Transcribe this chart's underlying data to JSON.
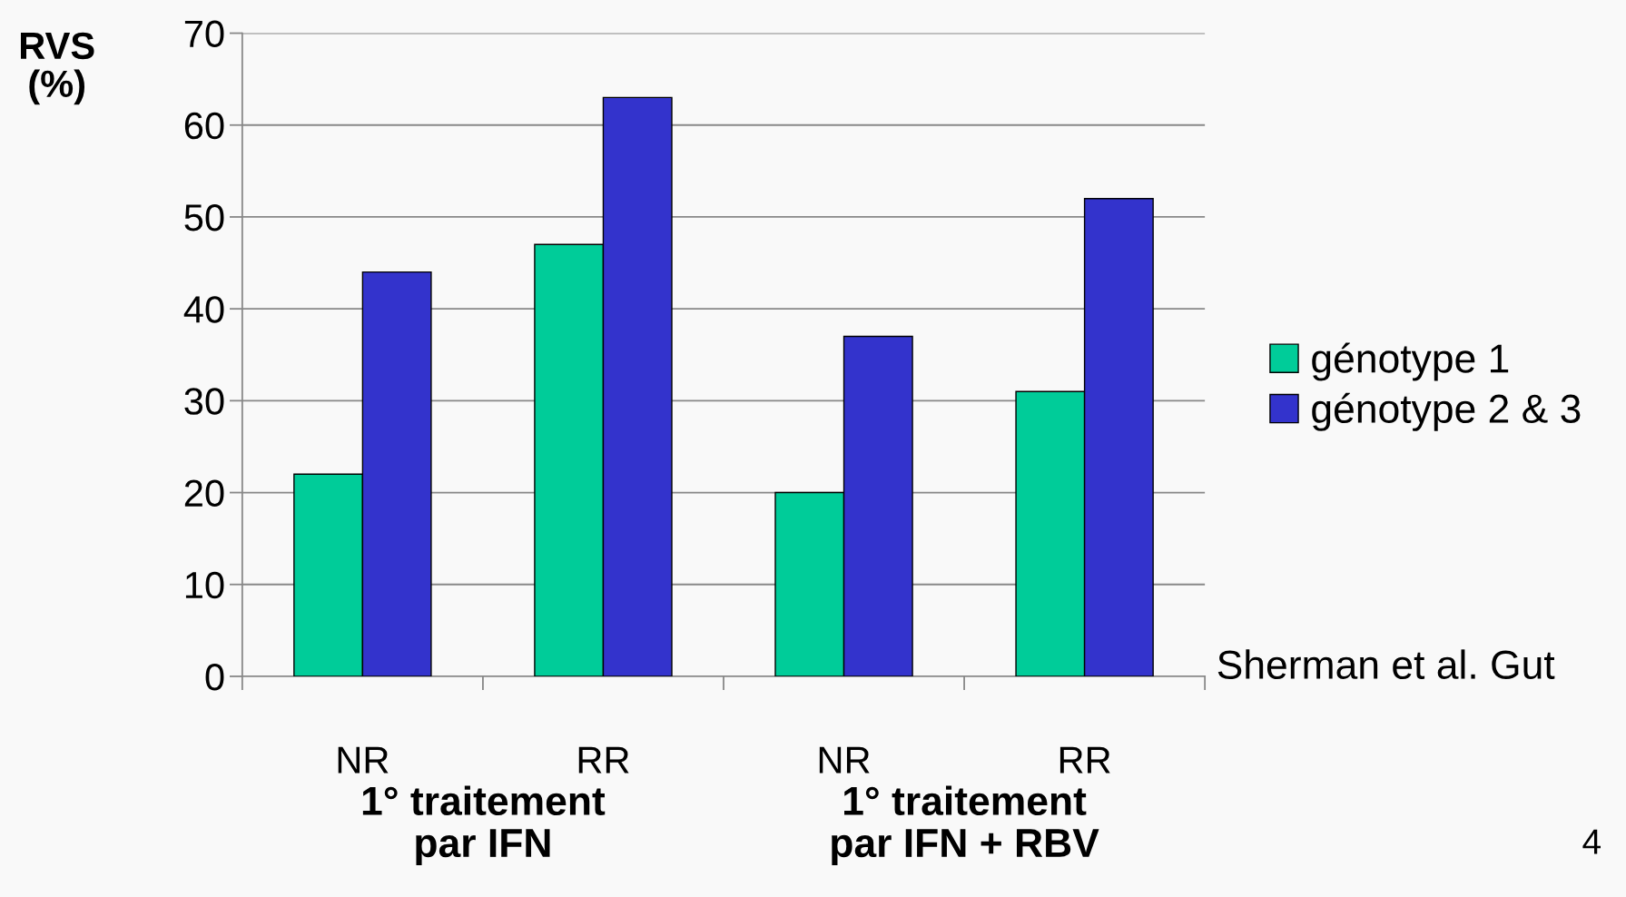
{
  "chart_data": {
    "type": "bar",
    "ylabel": "RVS\n(%)",
    "categories": [
      "NR",
      "RR",
      "NR",
      "RR"
    ],
    "series": [
      {
        "name": "génotype 1",
        "color": "#00cc99",
        "values": [
          22,
          47,
          20,
          31
        ]
      },
      {
        "name": "génotype 2 & 3",
        "color": "#3333cc",
        "values": [
          44,
          63,
          37,
          52
        ]
      }
    ],
    "ylim": [
      0,
      70
    ],
    "yticks": [
      0,
      10,
      20,
      30,
      40,
      50,
      60,
      70
    ],
    "grid": "y",
    "legend": "right",
    "annotations": [
      "1° traitement\npar IFN",
      "1° traitement\npar IFN + RBV",
      "Sherman et al. Gut",
      "4"
    ]
  }
}
